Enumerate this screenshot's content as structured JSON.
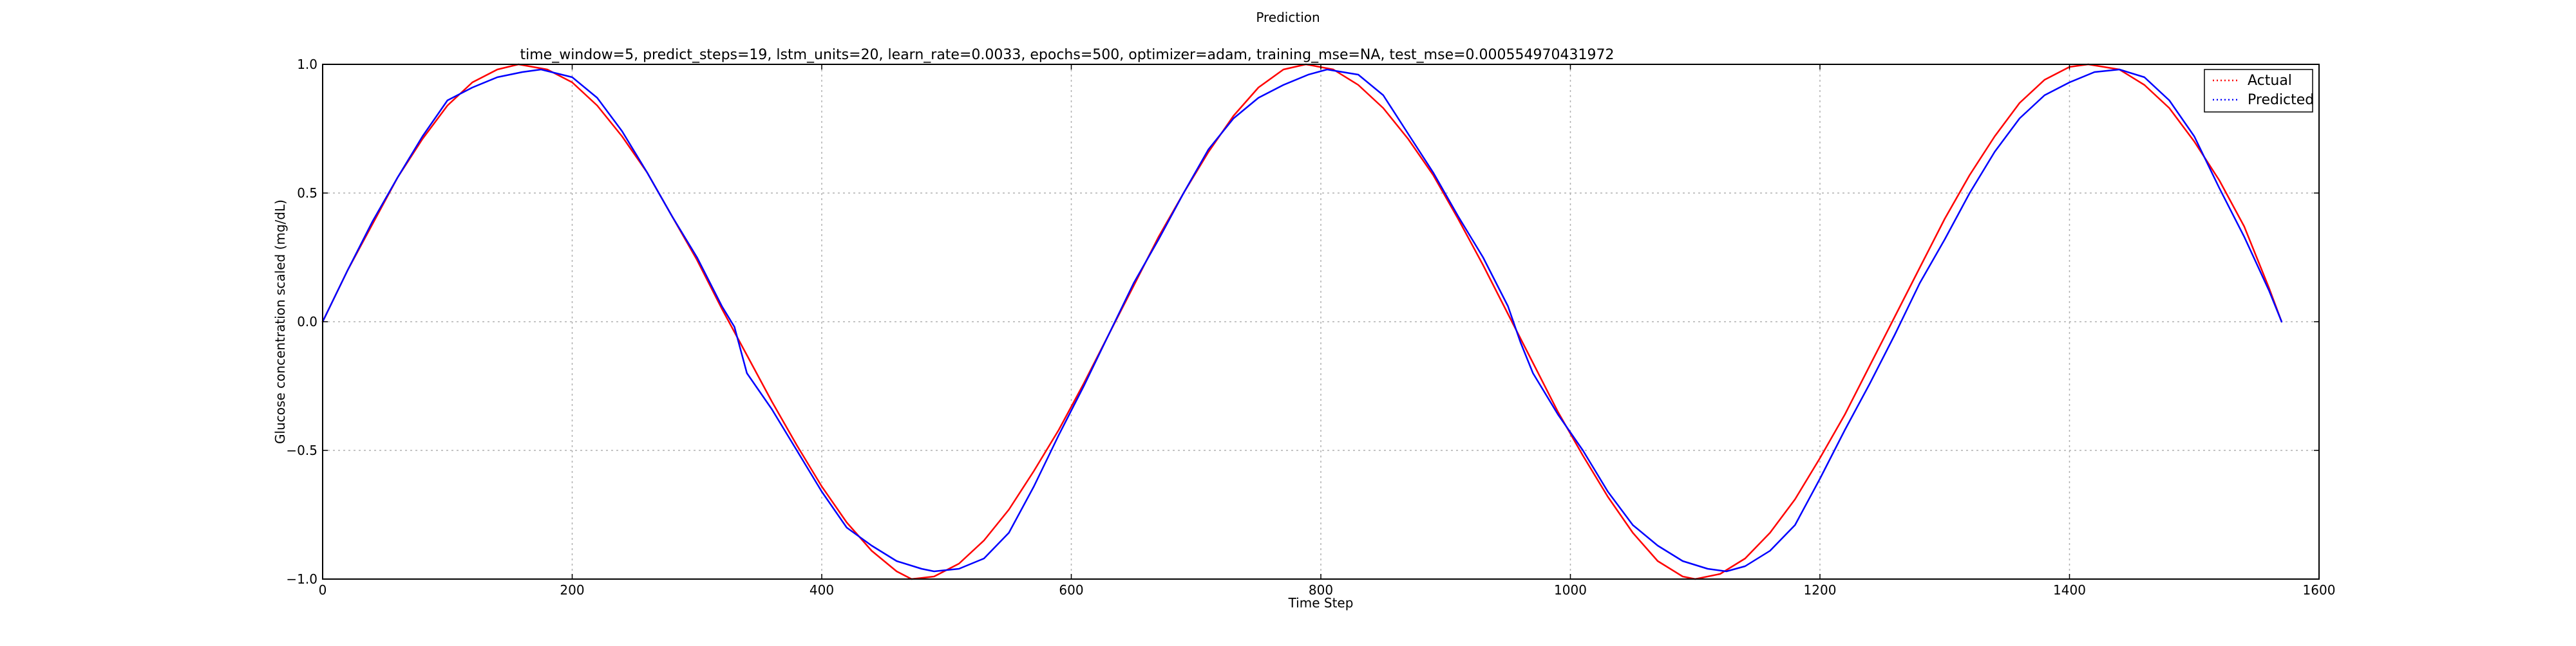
{
  "chart_data": {
    "type": "line",
    "suptitle": "Prediction",
    "title": "time_window=5, predict_steps=19, lstm_units=20, learn_rate=0.0033, epochs=500, optimizer=adam, training_mse=NA, test_mse=0.000554970431972",
    "xlabel": "Time Step",
    "ylabel": "Glucose concentration scaled (mg/dL)",
    "xlim": [
      0,
      1600
    ],
    "ylim": [
      -1.0,
      1.0
    ],
    "xticks": [
      0,
      200,
      400,
      600,
      800,
      1000,
      1200,
      1400,
      1600
    ],
    "xtick_labels": [
      "0",
      "200",
      "400",
      "600",
      "800",
      "1000",
      "1200",
      "1400",
      "1600"
    ],
    "yticks": [
      -1.0,
      -0.5,
      0.0,
      0.5,
      1.0
    ],
    "ytick_labels": [
      "−1.0",
      "−0.5",
      "0.0",
      "0.5",
      "1.0"
    ],
    "grid": true,
    "legend_position": "top-right",
    "series": [
      {
        "name": "Actual",
        "color": "#ff0000",
        "x": [
          0,
          20,
          40,
          60,
          80,
          100,
          120,
          140,
          157,
          180,
          200,
          220,
          240,
          260,
          280,
          300,
          320,
          340,
          360,
          380,
          400,
          420,
          440,
          460,
          472,
          490,
          510,
          530,
          550,
          570,
          590,
          610,
          630,
          650,
          670,
          690,
          710,
          730,
          750,
          770,
          788,
          810,
          830,
          850,
          870,
          890,
          910,
          930,
          950,
          970,
          990,
          1010,
          1030,
          1050,
          1070,
          1090,
          1100,
          1120,
          1140,
          1160,
          1180,
          1200,
          1220,
          1240,
          1260,
          1280,
          1300,
          1320,
          1340,
          1360,
          1380,
          1400,
          1415,
          1440,
          1460,
          1480,
          1500,
          1520,
          1540,
          1560,
          1570
        ],
        "y": [
          0.0,
          0.2,
          0.38,
          0.56,
          0.71,
          0.84,
          0.93,
          0.98,
          1.0,
          0.98,
          0.93,
          0.84,
          0.72,
          0.58,
          0.41,
          0.24,
          0.05,
          -0.13,
          -0.31,
          -0.48,
          -0.64,
          -0.78,
          -0.89,
          -0.97,
          -1.0,
          -0.99,
          -0.94,
          -0.85,
          -0.73,
          -0.58,
          -0.42,
          -0.24,
          -0.05,
          0.14,
          0.33,
          0.5,
          0.66,
          0.8,
          0.91,
          0.98,
          1.0,
          0.98,
          0.92,
          0.83,
          0.71,
          0.57,
          0.4,
          0.22,
          0.03,
          -0.16,
          -0.35,
          -0.52,
          -0.68,
          -0.82,
          -0.93,
          -0.99,
          -1.0,
          -0.98,
          -0.92,
          -0.82,
          -0.69,
          -0.53,
          -0.36,
          -0.17,
          0.02,
          0.21,
          0.4,
          0.57,
          0.72,
          0.85,
          0.94,
          0.99,
          1.0,
          0.98,
          0.92,
          0.83,
          0.7,
          0.55,
          0.37,
          0.13,
          0.0
        ]
      },
      {
        "name": "Predicted",
        "color": "#0000ff",
        "x": [
          0,
          20,
          40,
          60,
          80,
          100,
          120,
          140,
          160,
          175,
          200,
          220,
          240,
          260,
          280,
          300,
          320,
          330,
          340,
          360,
          380,
          400,
          420,
          440,
          460,
          480,
          490,
          510,
          530,
          550,
          570,
          590,
          610,
          630,
          650,
          670,
          690,
          710,
          730,
          750,
          770,
          790,
          805,
          830,
          850,
          870,
          890,
          910,
          930,
          950,
          960,
          970,
          990,
          1010,
          1030,
          1050,
          1070,
          1090,
          1110,
          1125,
          1140,
          1160,
          1180,
          1200,
          1220,
          1240,
          1260,
          1280,
          1300,
          1320,
          1340,
          1360,
          1380,
          1400,
          1420,
          1440,
          1460,
          1480,
          1500,
          1520,
          1540,
          1560,
          1570
        ],
        "y": [
          0.0,
          0.2,
          0.39,
          0.56,
          0.72,
          0.86,
          0.91,
          0.95,
          0.97,
          0.98,
          0.95,
          0.87,
          0.74,
          0.58,
          0.41,
          0.25,
          0.06,
          -0.02,
          -0.2,
          -0.34,
          -0.5,
          -0.66,
          -0.8,
          -0.87,
          -0.93,
          -0.96,
          -0.97,
          -0.96,
          -0.92,
          -0.82,
          -0.64,
          -0.44,
          -0.25,
          -0.05,
          0.15,
          0.32,
          0.5,
          0.67,
          0.79,
          0.87,
          0.92,
          0.96,
          0.98,
          0.96,
          0.88,
          0.73,
          0.58,
          0.41,
          0.25,
          0.06,
          -0.08,
          -0.2,
          -0.36,
          -0.5,
          -0.66,
          -0.79,
          -0.87,
          -0.93,
          -0.96,
          -0.97,
          -0.95,
          -0.89,
          -0.79,
          -0.61,
          -0.42,
          -0.24,
          -0.05,
          0.15,
          0.32,
          0.5,
          0.66,
          0.79,
          0.88,
          0.93,
          0.97,
          0.98,
          0.95,
          0.86,
          0.72,
          0.52,
          0.33,
          0.12,
          0.0
        ]
      }
    ]
  }
}
